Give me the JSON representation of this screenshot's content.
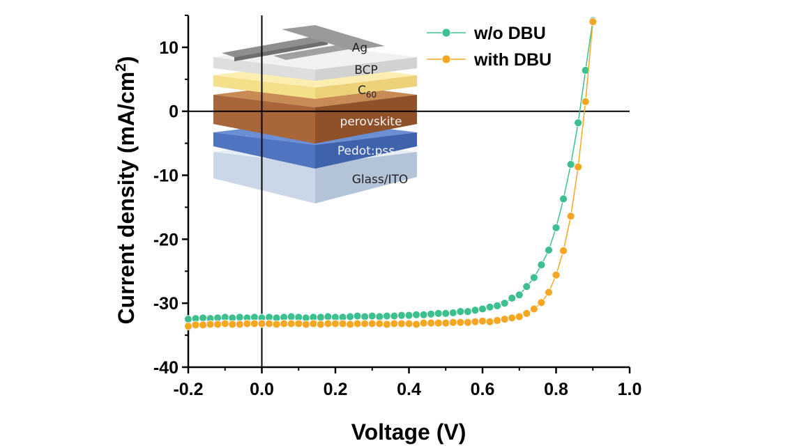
{
  "chart_data": {
    "type": "scatter",
    "xlabel": "Voltage (V)",
    "ylabel_main": "Current density (mA/cm",
    "ylabel_sup": "2",
    "ylabel_close": ")",
    "xlim": [
      -0.2,
      1.0
    ],
    "ylim": [
      -40,
      15
    ],
    "x_ticks": [
      "-0.2",
      "0.0",
      "0.2",
      "0.4",
      "0.6",
      "0.8",
      "1.0"
    ],
    "y_ticks": [
      "10",
      "0",
      "-10",
      "-20",
      "-30",
      "-40"
    ],
    "legend_position": "top-right",
    "inset_layers": [
      "Ag",
      "BCP",
      "C",
      "60",
      "perovskite",
      "Pedot:pss",
      "Glass/ITO"
    ],
    "series": [
      {
        "name": "w/o DBU",
        "color": "#3dbf8f",
        "x": [
          -0.2,
          -0.18,
          -0.16,
          -0.14,
          -0.12,
          -0.1,
          -0.08,
          -0.06,
          -0.04,
          -0.02,
          0.0,
          0.02,
          0.04,
          0.06,
          0.08,
          0.1,
          0.12,
          0.14,
          0.16,
          0.18,
          0.2,
          0.22,
          0.24,
          0.26,
          0.28,
          0.3,
          0.32,
          0.34,
          0.36,
          0.38,
          0.4,
          0.42,
          0.44,
          0.46,
          0.48,
          0.5,
          0.52,
          0.54,
          0.56,
          0.58,
          0.6,
          0.62,
          0.64,
          0.66,
          0.68,
          0.7,
          0.72,
          0.74,
          0.76,
          0.78,
          0.8,
          0.82,
          0.84,
          0.86,
          0.88,
          0.9
        ],
        "y": [
          -32.5,
          -32.4,
          -32.3,
          -32.4,
          -32.3,
          -32.2,
          -32.3,
          -32.2,
          -32.3,
          -32.2,
          -32.3,
          -32.2,
          -32.3,
          -32.2,
          -32.1,
          -32.2,
          -32.3,
          -32.2,
          -32.2,
          -32.1,
          -32.2,
          -32.2,
          -32.1,
          -32.0,
          -32.1,
          -32.0,
          -32.1,
          -32.0,
          -32.0,
          -31.9,
          -31.9,
          -31.8,
          -31.8,
          -31.7,
          -31.6,
          -31.6,
          -31.5,
          -31.3,
          -31.3,
          -31.1,
          -30.9,
          -30.6,
          -30.4,
          -30.0,
          -29.2,
          -28.7,
          -27.4,
          -26.0,
          -24.0,
          -21.7,
          -18.2,
          -13.7,
          -8.3,
          -1.8,
          6.4,
          14.2
        ]
      },
      {
        "name": "with DBU",
        "color": "#f5a623",
        "x": [
          -0.2,
          -0.18,
          -0.16,
          -0.14,
          -0.12,
          -0.1,
          -0.08,
          -0.06,
          -0.04,
          -0.02,
          0.0,
          0.02,
          0.04,
          0.06,
          0.08,
          0.1,
          0.12,
          0.14,
          0.16,
          0.18,
          0.2,
          0.22,
          0.24,
          0.26,
          0.28,
          0.3,
          0.32,
          0.34,
          0.36,
          0.38,
          0.4,
          0.42,
          0.44,
          0.46,
          0.48,
          0.5,
          0.52,
          0.54,
          0.56,
          0.58,
          0.6,
          0.62,
          0.64,
          0.66,
          0.68,
          0.7,
          0.72,
          0.74,
          0.76,
          0.78,
          0.8,
          0.82,
          0.84,
          0.86,
          0.88,
          0.9
        ],
        "y": [
          -33.6,
          -33.4,
          -33.4,
          -33.3,
          -33.3,
          -33.2,
          -33.3,
          -33.3,
          -33.2,
          -33.2,
          -33.2,
          -33.2,
          -33.3,
          -33.2,
          -33.2,
          -33.2,
          -33.3,
          -33.2,
          -33.3,
          -33.2,
          -33.2,
          -33.2,
          -33.3,
          -33.2,
          -33.2,
          -33.2,
          -33.2,
          -33.3,
          -33.2,
          -33.2,
          -33.2,
          -33.3,
          -33.1,
          -33.1,
          -33.1,
          -33.1,
          -33.0,
          -33.0,
          -33.0,
          -32.9,
          -32.8,
          -32.9,
          -32.7,
          -32.5,
          -32.3,
          -32.1,
          -31.6,
          -30.9,
          -29.9,
          -28.3,
          -25.6,
          -21.8,
          -16.4,
          -8.7,
          1.5,
          14.0
        ]
      }
    ]
  }
}
